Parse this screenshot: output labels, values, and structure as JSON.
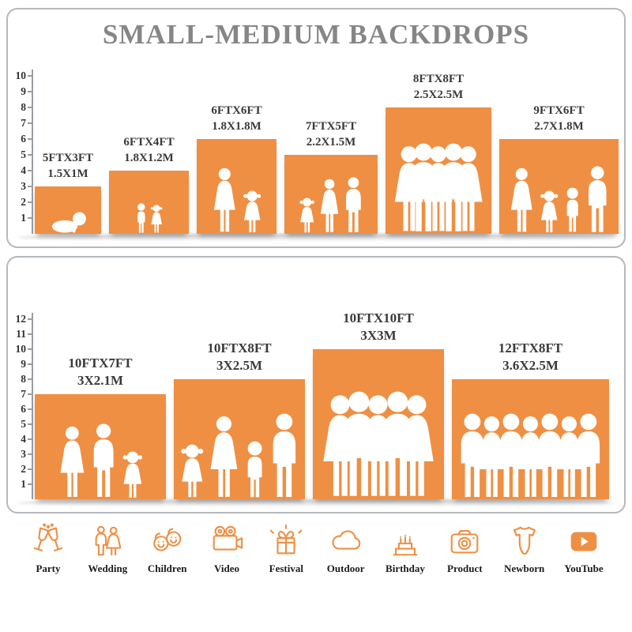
{
  "title": "SMALL-MEDIUM BACKDROPS",
  "colors": {
    "accent": "#EF8F43"
  },
  "panel1": {
    "scale_max": 10,
    "backdrops": [
      {
        "label1": "5FTX3FT",
        "label2": "1.5X1M",
        "w_ft": 5,
        "h_ft": 3,
        "figures": [
          "baby"
        ]
      },
      {
        "label1": "6FTX4FT",
        "label2": "1.8X1.2M",
        "w_ft": 6,
        "h_ft": 4,
        "figures": [
          "boy",
          "girl"
        ]
      },
      {
        "label1": "6FTX6FT",
        "label2": "1.8X1.8M",
        "w_ft": 6,
        "h_ft": 6,
        "figures": [
          "woman",
          "girl"
        ]
      },
      {
        "label1": "7FTX5FT",
        "label2": "2.2X1.5M",
        "w_ft": 7,
        "h_ft": 5,
        "figures": [
          "girl",
          "woman",
          "man"
        ]
      },
      {
        "label1": "8FTX8FT",
        "label2": "2.5X2.5M",
        "w_ft": 8,
        "h_ft": 8,
        "figures": [
          "woman",
          "man",
          "woman",
          "man",
          "woman"
        ]
      },
      {
        "label1": "9FTX6FT",
        "label2": "2.7X1.8M",
        "w_ft": 9,
        "h_ft": 6,
        "figures": [
          "woman",
          "girl",
          "boy",
          "man"
        ]
      }
    ]
  },
  "panel2": {
    "scale_max": 12,
    "backdrops": [
      {
        "label1": "10FTX7FT",
        "label2": "3X2.1M",
        "w_ft": 10,
        "h_ft": 7,
        "figures": [
          "woman",
          "man",
          "girl"
        ]
      },
      {
        "label1": "10FTX8FT",
        "label2": "3X2.5M",
        "w_ft": 10,
        "h_ft": 8,
        "figures": [
          "girl",
          "woman",
          "boy",
          "man"
        ]
      },
      {
        "label1": "10FTX10FT",
        "label2": "3X3M",
        "w_ft": 10,
        "h_ft": 10,
        "figures": [
          "woman",
          "man",
          "woman",
          "man",
          "woman"
        ]
      },
      {
        "label1": "12FTX8FT",
        "label2": "3.6X2.5M",
        "w_ft": 12,
        "h_ft": 8,
        "figures": [
          "man",
          "woman",
          "man",
          "woman",
          "man",
          "woman",
          "man"
        ]
      }
    ]
  },
  "categories": [
    {
      "label": "Party",
      "icon": "party-icon"
    },
    {
      "label": "Wedding",
      "icon": "wedding-icon"
    },
    {
      "label": "Children",
      "icon": "children-icon"
    },
    {
      "label": "Video",
      "icon": "video-icon"
    },
    {
      "label": "Festival",
      "icon": "festival-icon"
    },
    {
      "label": "Outdoor",
      "icon": "outdoor-icon"
    },
    {
      "label": "Birthday",
      "icon": "birthday-icon"
    },
    {
      "label": "Product",
      "icon": "product-icon"
    },
    {
      "label": "Newborn",
      "icon": "newborn-icon"
    },
    {
      "label": "YouTube",
      "icon": "youtube-icon"
    }
  ]
}
